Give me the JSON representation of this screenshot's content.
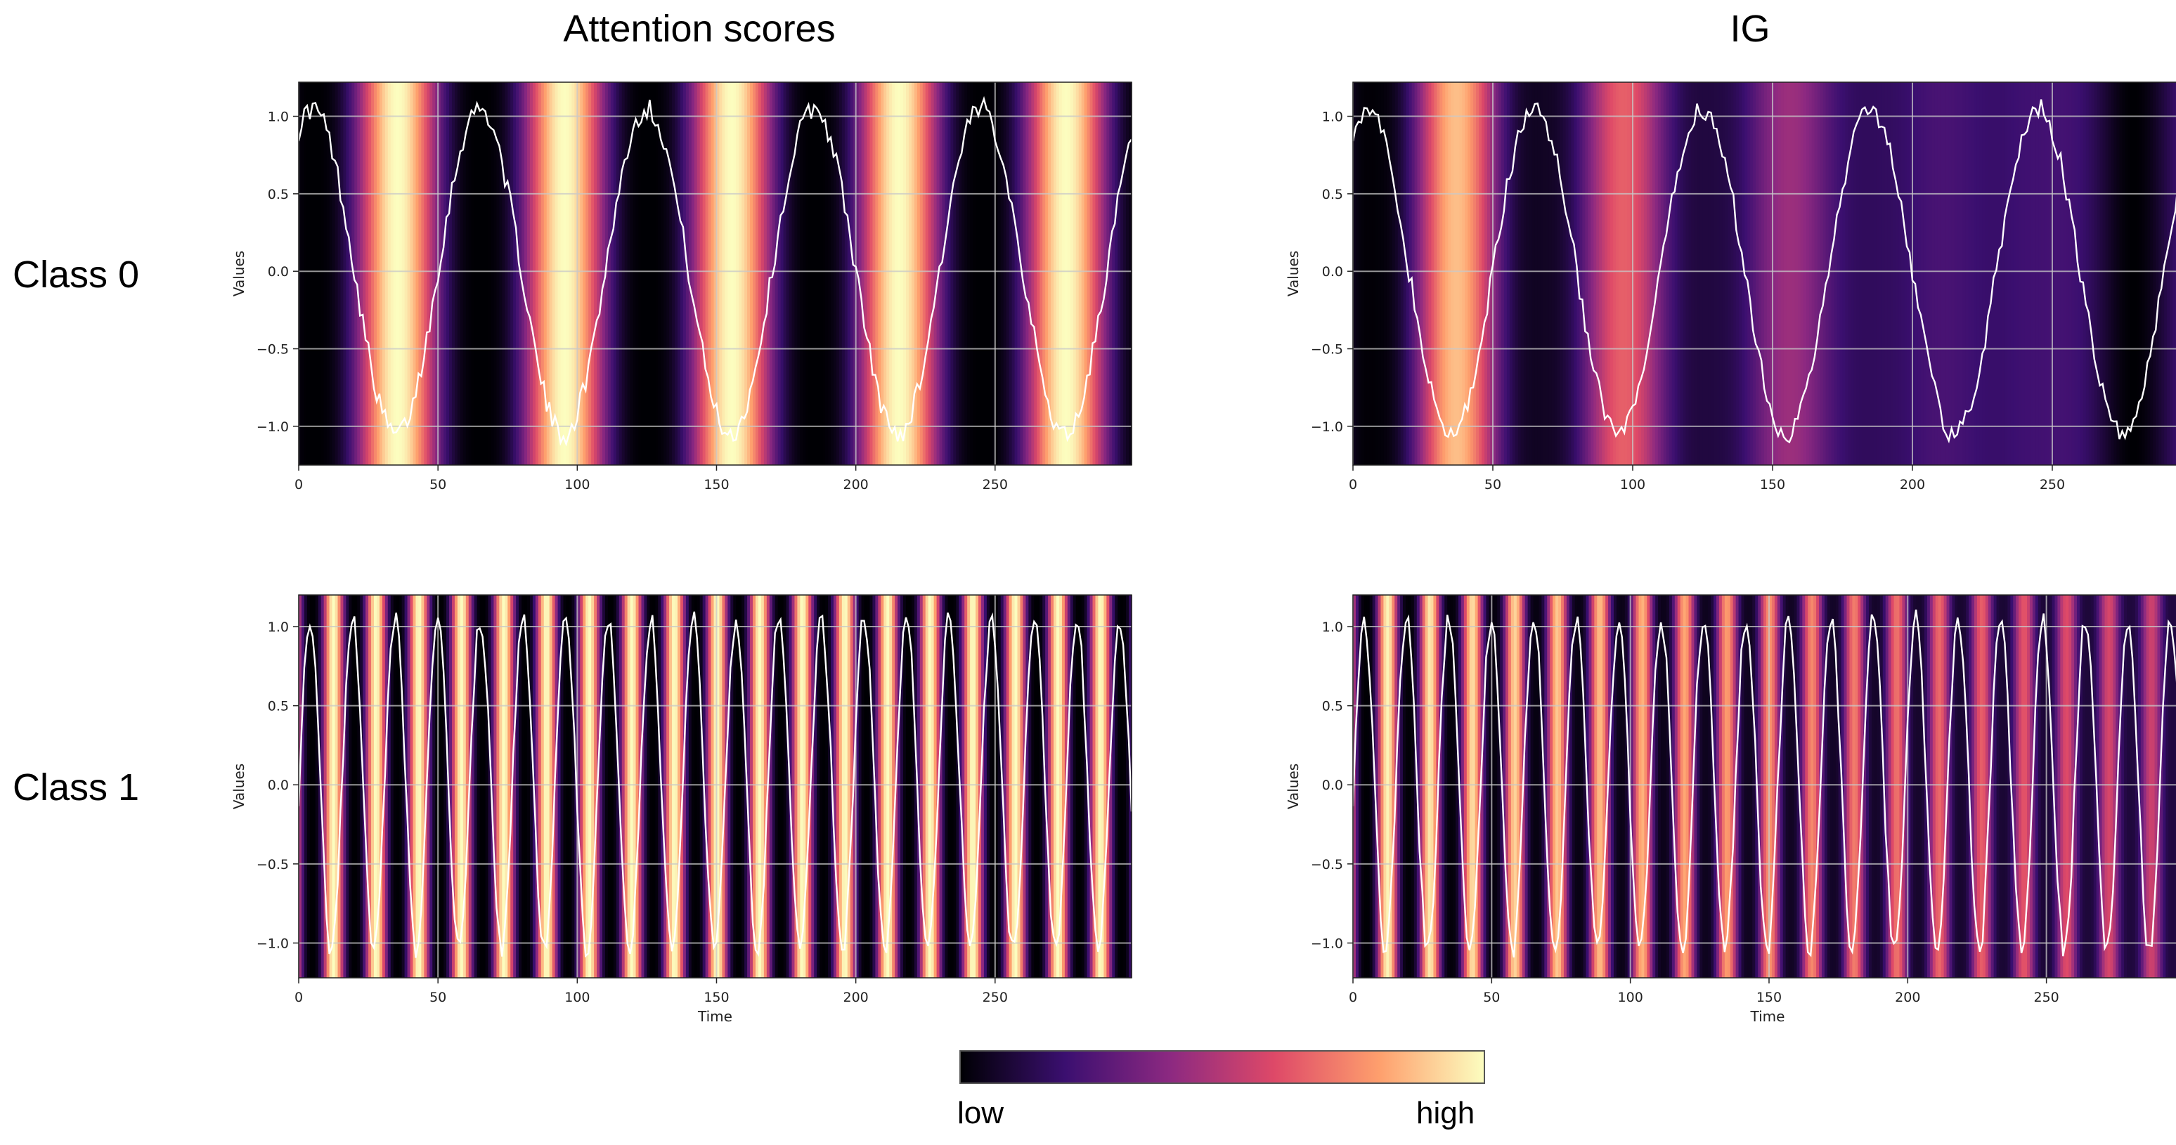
{
  "column_titles": [
    "Attention scores",
    "IG"
  ],
  "row_titles": [
    "Class 0",
    "Class 1"
  ],
  "colorbar": {
    "low_label": "low",
    "high_label": "high",
    "colormap": "magma",
    "stops": [
      "#000004",
      "#3b0f70",
      "#8c2981",
      "#de4968",
      "#fe9f6d",
      "#fcfdbf"
    ]
  },
  "chart_data": [
    {
      "type": "heatmap",
      "id": "class0-attention",
      "column": "Attention scores",
      "row": "Class 0",
      "xlabel": "",
      "ylabel": "Values",
      "xlim": [
        0,
        299
      ],
      "ylim": [
        -1.25,
        1.22
      ],
      "xticks": [
        0,
        50,
        100,
        150,
        200,
        250
      ],
      "yticks": [
        1.0,
        0.5,
        0.0,
        -0.5,
        -1.0
      ],
      "ytick_labels": [
        "1.0",
        "0.5",
        "0.0",
        "−0.5",
        "−1.0"
      ],
      "grid": true,
      "series_color": "#ffffff",
      "signal": {
        "shape": "sine",
        "period": 60,
        "amplitude": 1.05,
        "phase_peak": 5,
        "noise": 0.07,
        "n_points": 300
      },
      "heat": {
        "period": 60,
        "peak_time": 35,
        "peak_value": 1.0,
        "falloff": "cosine",
        "trend": 0.0
      }
    },
    {
      "type": "heatmap",
      "id": "class0-ig",
      "column": "IG",
      "row": "Class 0",
      "xlabel": "",
      "ylabel": "Values",
      "xlim": [
        0,
        299
      ],
      "ylim": [
        -1.25,
        1.22
      ],
      "xticks": [
        0,
        50,
        100,
        150,
        200,
        250
      ],
      "yticks": [
        1.0,
        0.5,
        0.0,
        -0.5,
        -1.0
      ],
      "ytick_labels": [
        "1.0",
        "0.5",
        "0.0",
        "−0.5",
        "−1.0"
      ],
      "grid": true,
      "series_color": "#ffffff",
      "signal": {
        "shape": "sine",
        "period": 60,
        "amplitude": 1.05,
        "phase_peak": 5,
        "noise": 0.07,
        "n_points": 300
      },
      "heat": {
        "period": 60,
        "peak_time": 37,
        "peak_value": 1.0,
        "falloff": "cosine",
        "trend": -0.0028
      }
    },
    {
      "type": "heatmap",
      "id": "class1-attention",
      "column": "Attention scores",
      "row": "Class 1",
      "xlabel": "Time",
      "ylabel": "Values",
      "xlim": [
        0,
        299
      ],
      "ylim": [
        -1.22,
        1.2
      ],
      "xticks": [
        0,
        50,
        100,
        150,
        200,
        250
      ],
      "yticks": [
        1.0,
        0.5,
        0.0,
        -0.5,
        -1.0
      ],
      "ytick_labels": [
        "1.0",
        "0.5",
        "0.0",
        "−0.5",
        "−1.0"
      ],
      "grid": true,
      "series_color": "#ffffff",
      "signal": {
        "shape": "sine",
        "period": 15.3,
        "amplitude": 1.05,
        "phase_peak": 4,
        "noise": 0.06,
        "n_points": 300
      },
      "heat": {
        "period": 15.3,
        "peak_time": 12,
        "peak_value": 1.0,
        "falloff": "cosine",
        "trend": 0.0
      }
    },
    {
      "type": "heatmap",
      "id": "class1-ig",
      "column": "IG",
      "row": "Class 1",
      "xlabel": "Time",
      "ylabel": "Values",
      "xlim": [
        0,
        299
      ],
      "ylim": [
        -1.22,
        1.2
      ],
      "xticks": [
        0,
        50,
        100,
        150,
        200,
        250
      ],
      "yticks": [
        1.0,
        0.5,
        0.0,
        -0.5,
        -1.0
      ],
      "ytick_labels": [
        "1.0",
        "0.5",
        "0.0",
        "−0.5",
        "−1.0"
      ],
      "grid": true,
      "series_color": "#ffffff",
      "signal": {
        "shape": "sine",
        "period": 15.3,
        "amplitude": 1.05,
        "phase_peak": 4,
        "noise": 0.06,
        "n_points": 300
      },
      "heat": {
        "period": 15.3,
        "peak_time": 12,
        "peak_value": 1.0,
        "falloff": "cosine",
        "trend": -0.0012
      }
    }
  ]
}
